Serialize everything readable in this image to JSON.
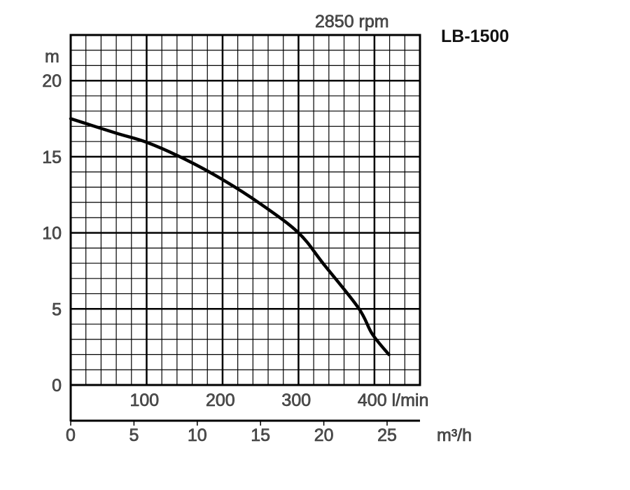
{
  "chart_data": {
    "type": "line",
    "title": "LB-1500",
    "subtitle": "2850 rpm",
    "ylabel": "m",
    "xlabel": "l/min",
    "x2label": "m³/h",
    "xlim": [
      0,
      460
    ],
    "ylim": [
      0,
      23
    ],
    "grid": true,
    "y_ticks": [
      0,
      5,
      10,
      15,
      20
    ],
    "x_ticks": [
      100,
      200,
      300,
      400
    ],
    "x_tick_labels": [
      "100",
      "200",
      "300",
      "400 l/min"
    ],
    "x2_ticks": [
      0,
      5,
      10,
      15,
      20,
      25
    ],
    "x2_tick_labels": [
      "0",
      "5",
      "10",
      "15",
      "20",
      "25"
    ],
    "series": [
      {
        "name": "LB-1500 head curve",
        "x": [
          0,
          60,
          100,
          150,
          200,
          250,
          300,
          333,
          379,
          397,
          419
        ],
        "y": [
          17.5,
          16.55,
          15.95,
          14.85,
          13.5,
          11.9,
          10,
          7.95,
          5.06,
          3.36,
          2.0
        ]
      }
    ]
  }
}
